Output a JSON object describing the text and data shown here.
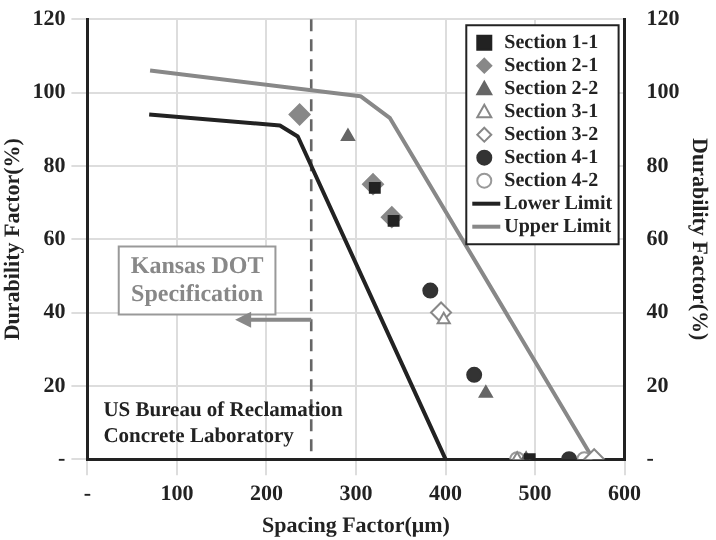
{
  "chart_data": {
    "type": "scatter",
    "xlabel": "Spacing Factor(μm)",
    "ylabel": "Durability Factor(%)",
    "y2label": "Durability Factor(%)",
    "xlim": [
      0,
      600
    ],
    "xticks": [
      {
        "value": 0,
        "label": "-"
      },
      100,
      200,
      300,
      400,
      500,
      600
    ],
    "ylim": [
      0,
      120
    ],
    "yticks": [
      {
        "value": 0,
        "label": "-"
      },
      20,
      40,
      60,
      80,
      100,
      120
    ],
    "y2lim": [
      0,
      120
    ],
    "y2ticks": [
      {
        "value": 0,
        "label": "-"
      },
      20,
      40,
      60,
      80,
      100,
      120
    ],
    "grid": true,
    "legend": "top right",
    "series": [
      {
        "name": "Section 1-1",
        "marker": "square",
        "color": "#222222",
        "x": [
          321,
          342,
          494
        ],
        "values": [
          74,
          65,
          0
        ]
      },
      {
        "name": "Section 2-1",
        "marker": "diamond",
        "color": "#888888",
        "x": [
          237,
          319,
          340
        ],
        "values": [
          94,
          75,
          66
        ]
      },
      {
        "name": "Section 2-2",
        "marker": "triangle",
        "color": "#666666",
        "x": [
          291,
          445,
          490
        ],
        "values": [
          88,
          18,
          0
        ]
      },
      {
        "name": "Section 3-1",
        "marker": "triangle",
        "color": "#888888",
        "x": [
          398,
          480
        ],
        "values": [
          38,
          0
        ]
      },
      {
        "name": "Section 3-2",
        "marker": "diamond",
        "color": "#888888",
        "x": [
          395,
          566
        ],
        "values": [
          40,
          0
        ]
      },
      {
        "name": "Section 4-1",
        "marker": "circle",
        "color": "#333333",
        "x": [
          383,
          432,
          538
        ],
        "values": [
          46,
          23,
          0
        ]
      },
      {
        "name": "Section 4-2",
        "marker": "circle",
        "color": "#999999",
        "x": [
          480,
          555
        ],
        "values": [
          0,
          0
        ]
      },
      {
        "name": "Lower Limit",
        "type": "line",
        "marker": "none",
        "color": "#222222",
        "x": [
          69,
          215,
          235,
          400
        ],
        "values": [
          94,
          91,
          88,
          0
        ]
      },
      {
        "name": "Upper Limit",
        "type": "line",
        "marker": "none",
        "color": "#888888",
        "x": [
          70,
          305,
          338,
          565
        ],
        "values": [
          106,
          99,
          93,
          0
        ]
      }
    ],
    "ref_lines": [
      {
        "axis": "x",
        "value": 250,
        "color": "#666666",
        "line_style": "dashed"
      }
    ],
    "annotations": [
      "Kansas DOT Specification",
      "US Bureau of Reclamation Concrete Laboratory"
    ]
  }
}
